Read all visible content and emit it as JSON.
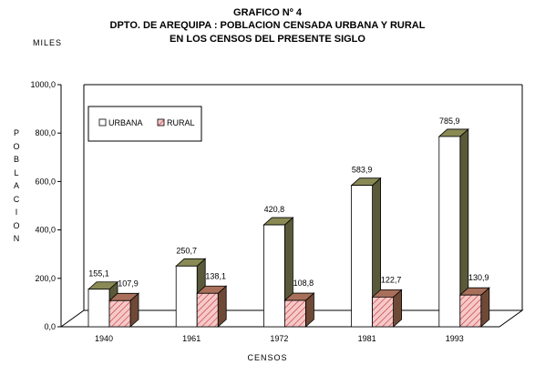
{
  "header": {
    "line1": "GRAFICO Nº 4",
    "line2": "DPTO. DE AREQUIPA : POBLACION CENSADA URBANA Y RURAL",
    "line3": "EN LOS CENSOS DEL PRESENTE SIGLO"
  },
  "colors": {
    "urbana_face": "#ffffff",
    "urbana_top": "#8a8a55",
    "urbana_side": "#5a5a3a",
    "rural_face": "#f6c9c9",
    "rural_hatch": "#c63a3a",
    "rural_top": "#a8705a",
    "rural_side": "#6e4a36"
  },
  "chart_data": {
    "type": "bar",
    "title": "DPTO. DE AREQUIPA : POBLACION CENSADA URBANA Y RURAL",
    "units": "MILES",
    "ylabel": "POBLACION",
    "xlabel": "CENSOS",
    "categories": [
      "1940",
      "1961",
      "1972",
      "1981",
      "1993"
    ],
    "series": [
      {
        "name": "URBANA",
        "values": [
          155.1,
          250.7,
          420.8,
          583.9,
          785.9
        ]
      },
      {
        "name": "RURAL",
        "values": [
          107.9,
          138.1,
          108.8,
          122.7,
          130.9
        ]
      }
    ],
    "value_labels": {
      "URBANA": [
        "155,1",
        "250,7",
        "420,8",
        "583,9",
        "785,9"
      ],
      "RURAL": [
        "107,9",
        "138,1",
        "108,8",
        "122,7",
        "130,9"
      ]
    },
    "yticks": [
      0,
      200,
      400,
      600,
      800,
      1000
    ],
    "ytick_labels": [
      "0,0",
      "200,0",
      "400,0",
      "600,0",
      "800,0",
      "1000,0"
    ],
    "ylim": [
      0,
      1000
    ],
    "legend": "top-left",
    "grid": false
  }
}
